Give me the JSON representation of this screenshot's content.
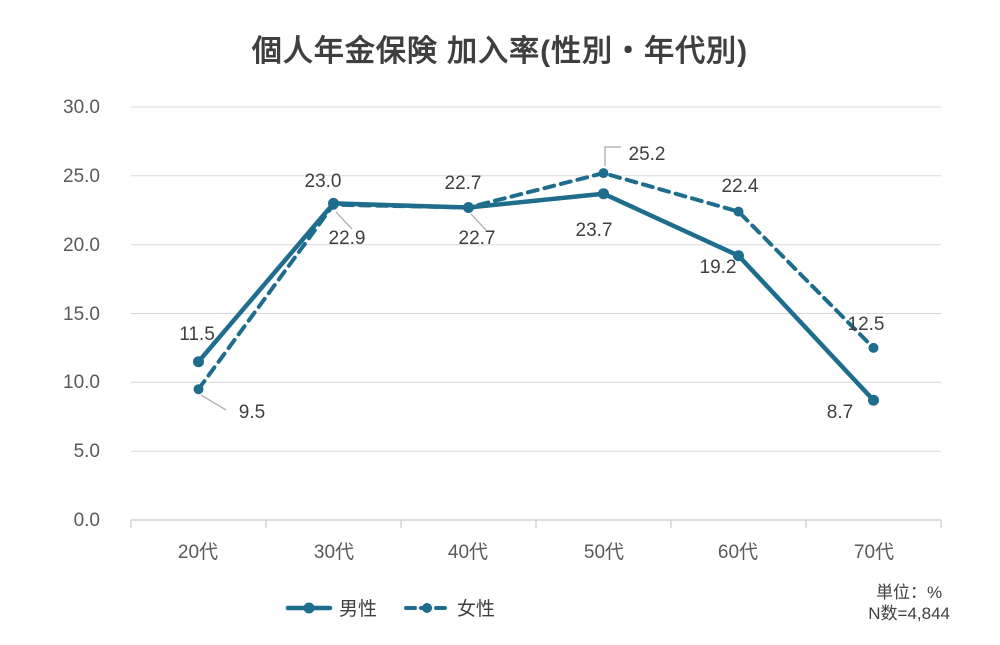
{
  "header": {
    "title": "個人年金保険 加入率(性別・年代別)"
  },
  "colors": {
    "accent": "#1f6d8c",
    "grid": "#d9d9d9",
    "axis_text": "#595959",
    "label_text": "#404040"
  },
  "chart_data": {
    "type": "line",
    "title": "個人年金保険 加入率(性別・年代別)",
    "categories": [
      "20代",
      "30代",
      "40代",
      "50代",
      "60代",
      "70代"
    ],
    "series": [
      {
        "name": "男性",
        "style": "solid",
        "values": [
          11.5,
          23.0,
          22.7,
          23.7,
          19.2,
          8.7
        ],
        "labels": [
          "11.5",
          "23.0",
          "22.7",
          "23.7",
          "19.2",
          "8.7"
        ]
      },
      {
        "name": "女性",
        "style": "dashed",
        "values": [
          9.5,
          22.9,
          22.7,
          25.2,
          22.4,
          12.5
        ],
        "labels": [
          "9.5",
          "22.9",
          "22.7",
          "25.2",
          "22.4",
          "12.5"
        ]
      }
    ],
    "ylim": [
      0,
      30
    ],
    "ytick_values": [
      30,
      25,
      20,
      15,
      10,
      5,
      0
    ],
    "ytick_labels": [
      "30.0",
      "25.0",
      "20.0",
      "15.0",
      "10.0",
      "5.0",
      "0.0"
    ],
    "grid": "horizontal",
    "legend_position": "bottom",
    "xlabel": "",
    "ylabel": ""
  },
  "legend": {
    "items": [
      {
        "label": "男性"
      },
      {
        "label": "女性"
      }
    ]
  },
  "footnote": {
    "unit": "単位：%",
    "n": "N数=4,844"
  }
}
